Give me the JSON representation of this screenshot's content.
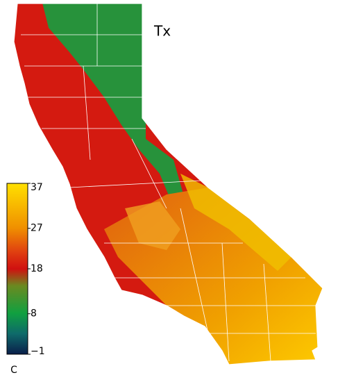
{
  "title": "Tx",
  "colorbar": {
    "range": [
      -1,
      37
    ],
    "ticks": [
      {
        "value": -1,
        "label": "−1"
      },
      8,
      18,
      27,
      37
    ],
    "unit": "C"
  }
}
